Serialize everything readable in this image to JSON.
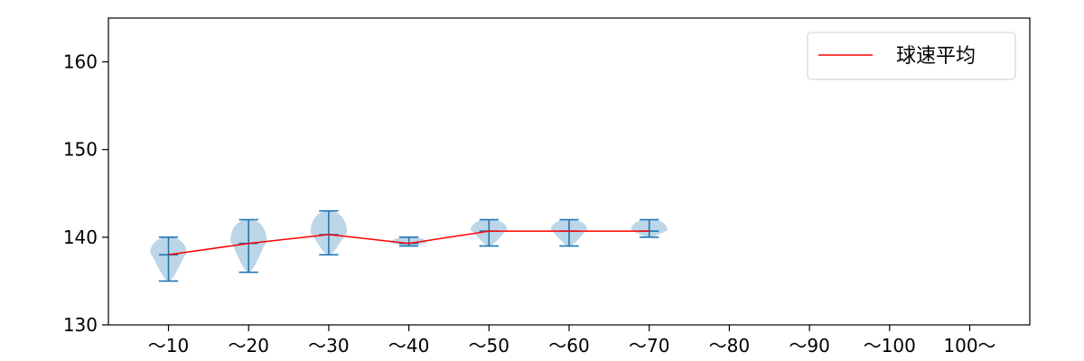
{
  "chart_data": {
    "type": "violin",
    "categories": [
      "～10",
      "～20",
      "～30",
      "～40",
      "～50",
      "～60",
      "～70",
      "～80",
      "～90",
      "～100",
      "100～"
    ],
    "ylim": [
      130,
      165
    ],
    "yticks": [
      130,
      140,
      150,
      160
    ],
    "yticks_text": [
      "130",
      "140",
      "150",
      "160"
    ],
    "grid": false,
    "legend": {
      "position": "top-right",
      "entries": [
        "球速平均"
      ]
    },
    "series": [
      {
        "name": "球速平均",
        "type": "line",
        "color": "#ff0000",
        "values": [
          138.0,
          139.3,
          140.3,
          139.3,
          140.7,
          140.7,
          140.7,
          null,
          null,
          null,
          null
        ]
      }
    ],
    "distributions": [
      {
        "category": "～10",
        "min": 135,
        "max": 140,
        "mean": 138.0
      },
      {
        "category": "～20",
        "min": 136,
        "max": 142,
        "mean": 139.3
      },
      {
        "category": "～30",
        "min": 138,
        "max": 143,
        "mean": 140.3
      },
      {
        "category": "～40",
        "min": 139,
        "max": 140,
        "mean": 139.3
      },
      {
        "category": "～50",
        "min": 139,
        "max": 142,
        "mean": 140.7
      },
      {
        "category": "～60",
        "min": 139,
        "max": 142,
        "mean": 140.7
      },
      {
        "category": "～70",
        "min": 140,
        "max": 142,
        "mean": 140.7
      }
    ],
    "colors": {
      "violin_fill": "#a6c8e0",
      "violin_edge": "#1f77b4",
      "mean_line": "#ff0000",
      "axes": "#000000"
    }
  }
}
